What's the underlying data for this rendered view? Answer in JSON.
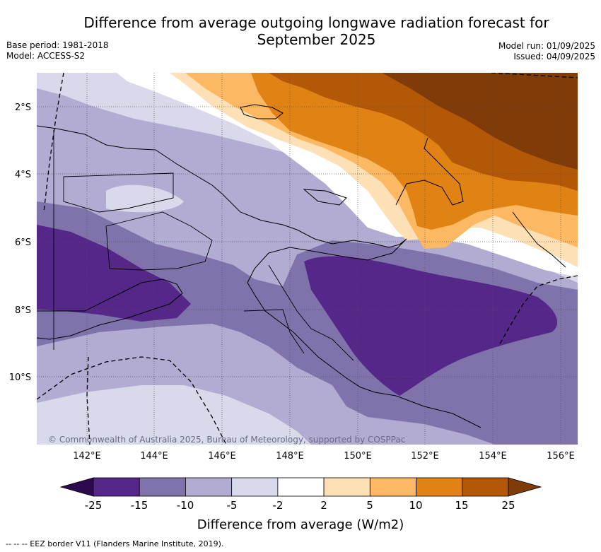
{
  "title_line1": "Difference from average outgoing longwave radiation forecast for",
  "title_line2": "September 2025",
  "meta_left": {
    "base_period": "Base period: 1981-2018",
    "model": "Model: ACCESS-S2"
  },
  "meta_right": {
    "model_run": "Model run: 01/09/2025",
    "issued": "Issued: 04/09/2025"
  },
  "copyright": "© Commonwealth of Australia 2025, Bureau of Meteorology, supported by COSPPac",
  "lat_labels": [
    "2°S",
    "4°S",
    "6°S",
    "8°S",
    "10°S"
  ],
  "lon_labels": [
    "142°E",
    "144°E",
    "146°E",
    "148°E",
    "150°E",
    "152°E",
    "154°E",
    "156°E"
  ],
  "colorbar": {
    "label": "Difference from average (W/m2)",
    "ticks": [
      "-25",
      "-15",
      "-10",
      "-5",
      "-2",
      "2",
      "5",
      "10",
      "15",
      "25"
    ],
    "under_color": "#2d0a4e",
    "over_color": "#7f3b08",
    "colors": [
      "#542788",
      "#8073ac",
      "#b2abd2",
      "#d8daeb",
      "#ffffff",
      "#fee0b6",
      "#fdb863",
      "#e08214",
      "#b35806"
    ]
  },
  "legend_note": "--  --  -- EEZ border V11 (Flanders Marine Institute, 2019)."
}
